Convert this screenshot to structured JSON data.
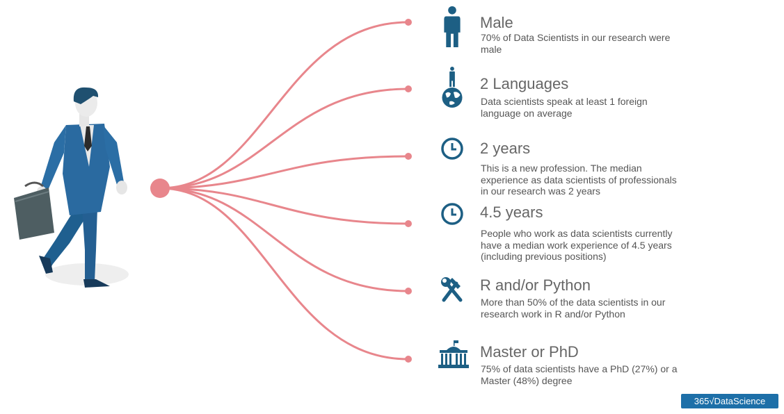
{
  "colors": {
    "accent": "#e8868c",
    "icon": "#1d5f84",
    "title": "#666666",
    "text": "#555555"
  },
  "items": [
    {
      "icon": "male-person-icon",
      "title": "Male",
      "desc": "70% of Data Scientists in our research were male"
    },
    {
      "icon": "person-on-globe-icon",
      "title": "2 Languages",
      "desc": "Data scientists speak at least 1 foreign language on average"
    },
    {
      "icon": "clock-icon",
      "title": "2 years",
      "desc": "This is a new profession. The median experience as data scientists of professionals in our research was 2 years"
    },
    {
      "icon": "clock-icon",
      "title": "4.5 years",
      "desc": "People who work as data scientists currently have a median work experience of 4.5 years (including previous positions)"
    },
    {
      "icon": "hammer-wrench-icon",
      "title": "R and/or Python",
      "desc": "More than 50% of the data scientists in our research work in R and/or Python"
    },
    {
      "icon": "university-building-icon",
      "title": "Master or PhD",
      "desc": "75% of data scientists have a PhD (27%) or a Master (48%) degree"
    }
  ],
  "logo": {
    "text": "365√DataScience",
    "color": "#1d6fa8"
  }
}
